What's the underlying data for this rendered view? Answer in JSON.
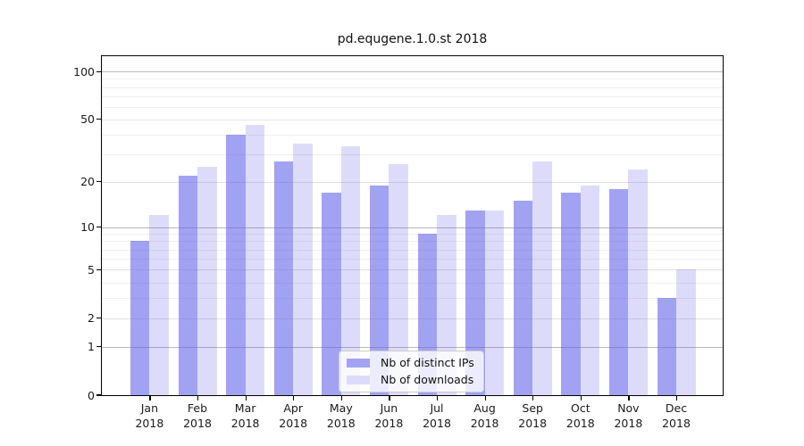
{
  "chart_data": {
    "type": "bar",
    "title": "pd.equgene.1.0.st 2018",
    "year_label": "2018",
    "categories": [
      "Jan",
      "Feb",
      "Mar",
      "Apr",
      "May",
      "Jun",
      "Jul",
      "Aug",
      "Sep",
      "Oct",
      "Nov",
      "Dec"
    ],
    "series": [
      {
        "name": "Nb of distinct IPs",
        "key": "distinct-ips",
        "fill": "rgba(94,94,233,0.58)",
        "legend_color": "#a3a3f2",
        "values": [
          8,
          22,
          40,
          27,
          17,
          19,
          9,
          13,
          15,
          17,
          18,
          3
        ]
      },
      {
        "name": "Nb of downloads",
        "key": "downloads",
        "fill": "rgba(94,94,233,0.22)",
        "legend_color": "#dcdcfa",
        "values": [
          12,
          25,
          46,
          35,
          34,
          26,
          12,
          13,
          27,
          19,
          24,
          5
        ]
      }
    ],
    "y_axis": {
      "scale": "log1p",
      "ticks": [
        0,
        1,
        2,
        5,
        10,
        20,
        50,
        100
      ],
      "range": [
        0,
        124
      ]
    },
    "gridlines": {
      "decade": [
        1,
        10,
        100
      ],
      "labeled": [
        2,
        5,
        20,
        50
      ],
      "minor": [
        3,
        4,
        6,
        7,
        8,
        9,
        30,
        40,
        60,
        70,
        80,
        90
      ]
    },
    "legend": {
      "position": "bottom-center"
    },
    "colors": {
      "spine": "#000000",
      "grid_major": "#b9b9b9",
      "grid_minor": "#efefef",
      "background": "#ffffff"
    }
  }
}
